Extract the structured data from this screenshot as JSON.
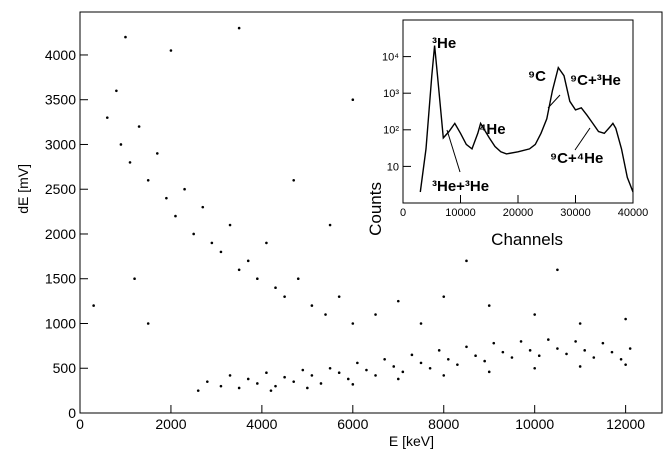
{
  "chart_data": [
    {
      "type": "scatter",
      "x_label": "E [keV]",
      "y_label": "dE [mV]",
      "color": "#000000",
      "xlim": [
        0,
        12800
      ],
      "ylim": [
        0,
        4480
      ],
      "xticks": [
        0,
        2000,
        4000,
        6000,
        8000,
        10000,
        12000
      ],
      "yticks": [
        0,
        500,
        1000,
        1500,
        2000,
        2500,
        3000,
        3500,
        4000
      ],
      "x": [
        2600,
        2800,
        3100,
        3300,
        3500,
        3700,
        3900,
        4100,
        4300,
        4500,
        4700,
        4900,
        5100,
        5300,
        5500,
        5700,
        5900,
        6100,
        6300,
        6500,
        6700,
        6900,
        7100,
        7300,
        7500,
        7700,
        7900,
        8100,
        8300,
        8500,
        8700,
        8900,
        9100,
        9300,
        9500,
        9700,
        9900,
        10100,
        10300,
        10500,
        10700,
        10900,
        11100,
        11300,
        11500,
        11700,
        11900,
        12100,
        4200,
        5000,
        6000,
        7000,
        8000,
        9000,
        10000,
        11000,
        12000,
        600,
        800,
        900,
        1100,
        1300,
        1500,
        1700,
        1900,
        2100,
        2300,
        2500,
        2700,
        2900,
        3100,
        3300,
        3500,
        3700,
        3900,
        4100,
        4300,
        4500,
        4800,
        5100,
        5400,
        5700,
        6000,
        6500,
        7000,
        7500,
        8000,
        9000,
        10000,
        11000,
        12000,
        1000,
        2000,
        3500,
        6000,
        300,
        1200,
        1500,
        8500,
        10500,
        4700,
        5500
      ],
      "values": [
        250,
        350,
        300,
        420,
        280,
        380,
        330,
        450,
        300,
        400,
        350,
        480,
        420,
        330,
        500,
        450,
        380,
        560,
        480,
        420,
        600,
        520,
        460,
        650,
        560,
        500,
        700,
        600,
        540,
        740,
        640,
        580,
        780,
        680,
        620,
        800,
        700,
        640,
        820,
        720,
        660,
        800,
        700,
        620,
        780,
        680,
        600,
        720,
        250,
        280,
        320,
        380,
        420,
        460,
        500,
        520,
        540,
        3300,
        3600,
        3000,
        2800,
        3200,
        2600,
        2900,
        2400,
        2200,
        2500,
        2000,
        2300,
        1900,
        1800,
        2100,
        1600,
        1700,
        1500,
        1900,
        1400,
        1300,
        1500,
        1200,
        1100,
        1300,
        1000,
        1100,
        1250,
        1000,
        1300,
        1200,
        1100,
        1000,
        1050,
        4200,
        4050,
        4300,
        3500,
        1200,
        1500,
        1000,
        1700,
        1600,
        2600,
        2100
      ]
    },
    {
      "type": "line",
      "x_label": "Channels",
      "y_label": "Counts",
      "color": "#000000",
      "log_y": true,
      "xlim": [
        0,
        40000
      ],
      "ylim": [
        1,
        100000
      ],
      "xticks": [
        0,
        10000,
        20000,
        30000,
        40000
      ],
      "yticks": [
        10,
        {
          "value": 100,
          "label": "10²"
        },
        {
          "value": 1000,
          "label": "10³"
        },
        {
          "value": 10000,
          "label": "10⁴"
        }
      ],
      "x": [
        3000,
        4000,
        5000,
        5500,
        6000,
        7000,
        8000,
        9000,
        10000,
        11000,
        12000,
        13000,
        13500,
        14000,
        15000,
        16000,
        17000,
        18000,
        20000,
        22000,
        23000,
        24000,
        25000,
        26000,
        27000,
        28000,
        29000,
        30000,
        31000,
        32000,
        33000,
        34000,
        35000,
        36000,
        36500,
        37000,
        38000,
        39000,
        40000
      ],
      "values": [
        2,
        30,
        3000,
        20000,
        3000,
        60,
        90,
        150,
        80,
        40,
        30,
        80,
        150,
        110,
        60,
        35,
        25,
        22,
        25,
        30,
        40,
        80,
        200,
        1200,
        5000,
        3000,
        600,
        350,
        400,
        250,
        150,
        90,
        80,
        120,
        150,
        110,
        30,
        5,
        2
      ],
      "annotations": [
        "³He",
        "⁴He",
        "⁹C",
        "⁹C+³He",
        "³He+³He",
        "⁹C+⁴He"
      ]
    }
  ]
}
